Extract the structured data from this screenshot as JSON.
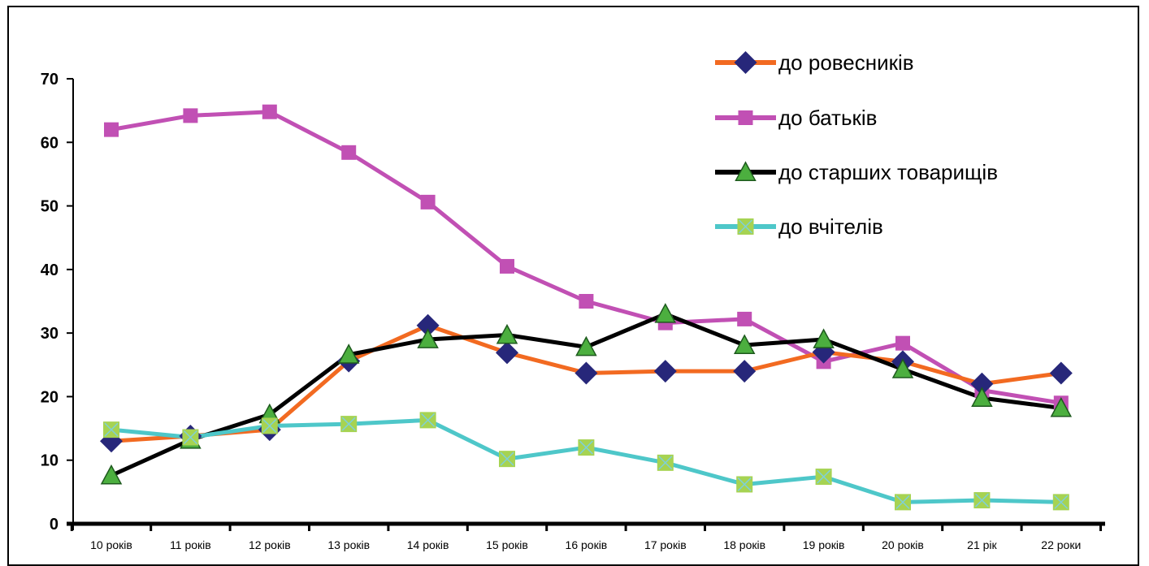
{
  "chart_data": {
    "type": "line",
    "title": "",
    "xlabel": "",
    "ylabel": "",
    "categories": [
      "10 років",
      "11 років",
      "12 років",
      "13 років",
      "14 років",
      "15 років",
      "16 років",
      "17 років",
      "18 років",
      "19 років",
      "20 років",
      "21 рік",
      "22 роки"
    ],
    "ylim": [
      0,
      70
    ],
    "yticks": [
      "0",
      "10",
      "20",
      "30",
      "40",
      "50",
      "60",
      "70"
    ],
    "grid": false,
    "legend_position": "top-right",
    "series": [
      {
        "name": "до ровесників",
        "line_color": "#F26A21",
        "marker": "diamond",
        "marker_color": "#27277A",
        "values": [
          13,
          13.8,
          14.8,
          25.6,
          31.2,
          26.9,
          23.7,
          24,
          24,
          27,
          25.5,
          22,
          23.7
        ]
      },
      {
        "name": "до батьків",
        "line_color": "#C150B4",
        "marker": "square",
        "marker_color": "#C150B4",
        "values": [
          62,
          64.2,
          64.8,
          58.4,
          50.6,
          40.5,
          35,
          31.6,
          32.2,
          25.5,
          28.4,
          21,
          19
        ]
      },
      {
        "name": "до старших товарищів",
        "line_color": "#000000",
        "marker": "triangle",
        "marker_color": "#4CAF3F",
        "values": [
          7.6,
          13.2,
          17.2,
          26.6,
          29,
          29.7,
          27.8,
          33,
          28.1,
          29,
          24.3,
          19.8,
          18.2
        ]
      },
      {
        "name": "до вчітелів",
        "line_color": "#4EC7C9",
        "marker": "square-x",
        "marker_color": "#A6D352",
        "values": [
          14.8,
          13.6,
          15.4,
          15.7,
          16.3,
          10.2,
          12,
          9.6,
          6.2,
          7.4,
          3.4,
          3.7,
          3.4
        ]
      }
    ]
  }
}
